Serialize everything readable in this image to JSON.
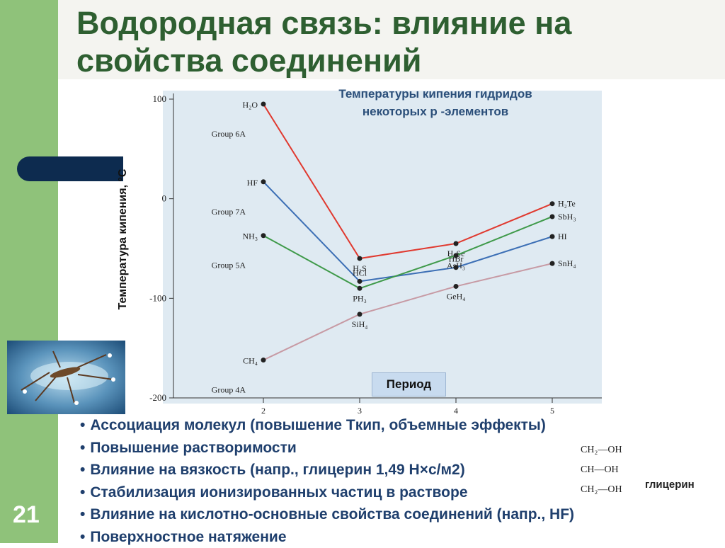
{
  "slide": {
    "title": "Водородная связь: влияние на свойства соединений",
    "number": "21",
    "accent_color": "#2e5f31",
    "side_bar_color": "#8fc27a",
    "text_color": "#1f3f6d"
  },
  "chart_data": {
    "type": "line",
    "title_line1": "Температуры кипения гидридов",
    "title_line2": "некоторых р -элементов",
    "ylabel": "Температура кипения, °C",
    "xlabel": "Период",
    "x_ticks": [
      "2",
      "3",
      "4",
      "5"
    ],
    "y_ticks": [
      100,
      0,
      -100,
      -200
    ],
    "y_tick_labels": [
      "100",
      "0",
      "-100",
      "-200"
    ],
    "ylim": [
      -200,
      100
    ],
    "xlim": [
      2,
      5
    ],
    "grid": false,
    "plot_bg": "#dfeaf2",
    "series": [
      {
        "name": "Group 6A",
        "color": "#e0392f",
        "points": [
          {
            "x": 2,
            "y": 95,
            "label": "H₂O"
          },
          {
            "x": 3,
            "y": -60,
            "label": "H₂S"
          },
          {
            "x": 4,
            "y": -45,
            "label": "H₂Se"
          },
          {
            "x": 5,
            "y": -5,
            "label": "H₂Te"
          }
        ]
      },
      {
        "name": "Group 7A",
        "color": "#3c6fb5",
        "points": [
          {
            "x": 2,
            "y": 17,
            "label": "HF"
          },
          {
            "x": 3,
            "y": -83,
            "label": "HCl"
          },
          {
            "x": 4,
            "y": -69,
            "label": "HBr"
          },
          {
            "x": 5,
            "y": -38,
            "label": "HI"
          }
        ]
      },
      {
        "name": "Group 5A",
        "color": "#3f9a4a",
        "points": [
          {
            "x": 2,
            "y": -37,
            "label": "NH₃"
          },
          {
            "x": 3,
            "y": -90,
            "label": "PH₃"
          },
          {
            "x": 4,
            "y": -57,
            "label": "AsH₃"
          },
          {
            "x": 5,
            "y": -18,
            "label": "SbH₃"
          }
        ]
      },
      {
        "name": "Group 4A",
        "color": "#c79aa4",
        "points": [
          {
            "x": 2,
            "y": -162,
            "label": "CH₄"
          },
          {
            "x": 3,
            "y": -116,
            "label": "SiH₄"
          },
          {
            "x": 4,
            "y": -88,
            "label": "GeH₄"
          },
          {
            "x": 5,
            "y": -65,
            "label": "SnH₄"
          }
        ]
      }
    ]
  },
  "bullets": [
    "Ассоциация молекул (повышение Tкип, объемные эффекты)",
    "Повышение растворимости",
    "Влияние на вязкость (напр., глицерин 1,49 Н×с/м2)",
    "Стабилизация ионизированных частиц в растворе",
    "Влияние на кислотно-основные свойства соединений (напр., HF)",
    "Поверхностное натяжение"
  ],
  "glycerin": {
    "rows": [
      "CH₂—OH",
      "CH—OH",
      "CH₂—OH"
    ],
    "label": "глицерин"
  }
}
